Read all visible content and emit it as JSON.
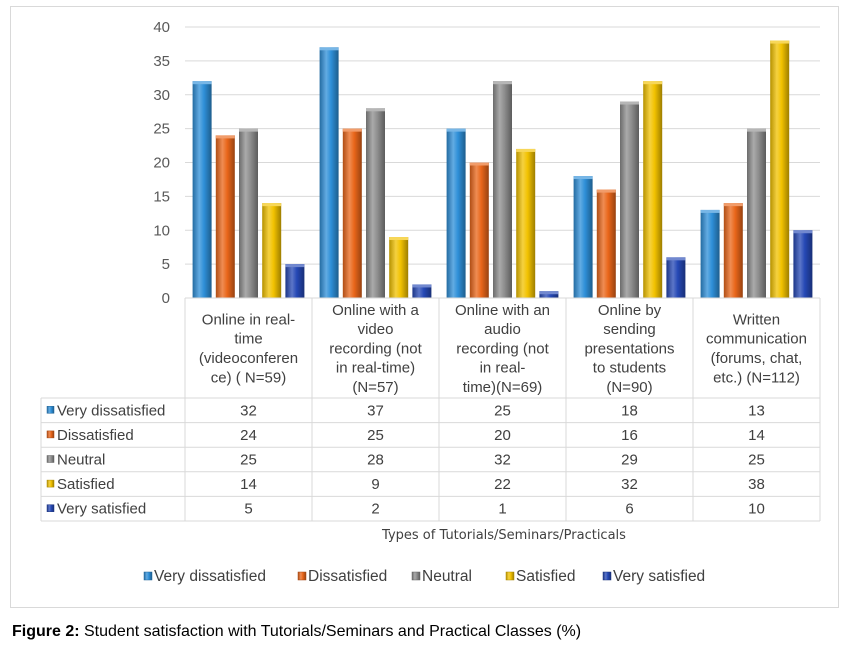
{
  "chart_data": {
    "type": "bar",
    "ylim": [
      0,
      40
    ],
    "yticks": [
      "0",
      "5",
      "10",
      "15",
      "20",
      "25",
      "30",
      "35",
      "40"
    ],
    "categories": [
      "Online in real-time (videoconference) ( N=59)",
      "Online with a video recording (not in real-time) (N=57)",
      "Online with an audio recording (not in real-time)(N=69)",
      "Online by sending presentations to students (N=90)",
      "Written communication (forums, chat, etc.) (N=112)"
    ],
    "category_lines": [
      [
        "Online in real-",
        "time",
        "(videoconferen",
        "ce) ( N=59)"
      ],
      [
        "Online with a",
        "video",
        "recording (not",
        "in real-time)",
        "(N=57)"
      ],
      [
        "Online with an",
        "audio",
        "recording (not",
        "in real-",
        "time)(N=69)"
      ],
      [
        "Online by",
        "sending",
        "presentations",
        "to students",
        "(N=90)"
      ],
      [
        "Written",
        "communication",
        "(forums, chat,",
        "etc.) (N=112)"
      ]
    ],
    "series": [
      {
        "name": "Very dissatisfied",
        "color": "#2e8fd8",
        "values": [
          32,
          37,
          25,
          18,
          13
        ]
      },
      {
        "name": "Dissatisfied",
        "color": "#e9661a",
        "values": [
          24,
          25,
          20,
          16,
          14
        ]
      },
      {
        "name": "Neutral",
        "color": "#8e8e8e",
        "values": [
          25,
          28,
          32,
          29,
          25
        ]
      },
      {
        "name": "Satisfied",
        "color": "#f2c200",
        "values": [
          14,
          9,
          22,
          32,
          38
        ]
      },
      {
        "name": "Very satisfied",
        "color": "#2548b5",
        "values": [
          5,
          2,
          1,
          6,
          10
        ]
      }
    ],
    "xlabel": "Types of  Tutorials/Seminars/Practicals",
    "legend_position": "bottom"
  },
  "caption": {
    "label": "Figure 2:",
    "text": " Student satisfaction with Tutorials/Seminars and Practical Classes (%)"
  }
}
